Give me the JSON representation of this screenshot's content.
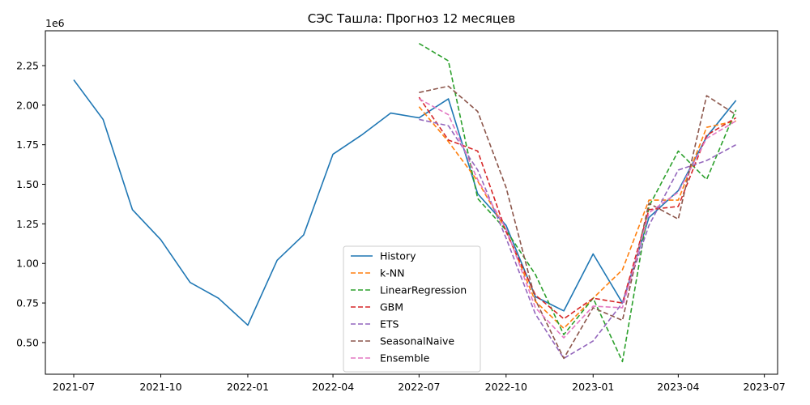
{
  "chart_data": {
    "type": "line",
    "title": "СЭС Ташла: Прогноз 12 месяцев",
    "y_offset_label": "1e6",
    "xlabel": "",
    "ylabel": "",
    "x_ticks": [
      "2021-07",
      "2021-10",
      "2022-01",
      "2022-04",
      "2022-07",
      "2022-10",
      "2023-01",
      "2023-04",
      "2023-07"
    ],
    "y_ticks": [
      "0.50",
      "0.75",
      "1.00",
      "1.25",
      "1.50",
      "1.75",
      "2.00",
      "2.25"
    ],
    "xlim": [
      "2021-06-01",
      "2023-07-15"
    ],
    "ylim": [
      300000,
      2470000
    ],
    "grid": false,
    "legend_position": "lower-center",
    "series": [
      {
        "name": "History",
        "color": "#1f77b4",
        "dash": "solid",
        "x": [
          "2021-07-01",
          "2021-08-01",
          "2021-09-01",
          "2021-10-01",
          "2021-11-01",
          "2021-12-01",
          "2022-01-01",
          "2022-02-01",
          "2022-03-01",
          "2022-04-01",
          "2022-05-01",
          "2022-06-01",
          "2022-07-01",
          "2022-08-01",
          "2022-09-01",
          "2022-10-01",
          "2022-11-01",
          "2022-12-01",
          "2023-01-01",
          "2023-02-01",
          "2023-03-01",
          "2023-04-01",
          "2023-05-01",
          "2023-06-01"
        ],
        "values": [
          2160000,
          1910000,
          1340000,
          1150000,
          880000,
          780000,
          610000,
          1020000,
          1180000,
          1690000,
          1810000,
          1950000,
          1920000,
          2040000,
          1440000,
          1240000,
          790000,
          700000,
          1060000,
          750000,
          1290000,
          1460000,
          1800000,
          2030000
        ]
      },
      {
        "name": "k-NN",
        "color": "#ff7f0e",
        "dash": "dashed",
        "x": [
          "2022-07-01",
          "2022-08-01",
          "2022-09-01",
          "2022-10-01",
          "2022-11-01",
          "2022-12-01",
          "2023-01-01",
          "2023-02-01",
          "2023-03-01",
          "2023-04-01",
          "2023-05-01",
          "2023-06-01"
        ],
        "values": [
          1990000,
          1770000,
          1520000,
          1210000,
          760000,
          590000,
          780000,
          960000,
          1400000,
          1400000,
          1860000,
          1900000
        ]
      },
      {
        "name": "LinearRegression",
        "color": "#2ca02c",
        "dash": "dashed",
        "x": [
          "2022-07-01",
          "2022-08-01",
          "2022-09-01",
          "2022-10-01",
          "2022-11-01",
          "2022-12-01",
          "2023-01-01",
          "2023-02-01",
          "2023-03-01",
          "2023-04-01",
          "2023-05-01",
          "2023-06-01"
        ],
        "values": [
          2390000,
          2280000,
          1410000,
          1210000,
          930000,
          550000,
          780000,
          380000,
          1360000,
          1710000,
          1530000,
          1970000
        ]
      },
      {
        "name": "GBM",
        "color": "#d62728",
        "dash": "dashed",
        "x": [
          "2022-07-01",
          "2022-08-01",
          "2022-09-01",
          "2022-10-01",
          "2022-11-01",
          "2022-12-01",
          "2023-01-01",
          "2023-02-01",
          "2023-03-01",
          "2023-04-01",
          "2023-05-01",
          "2023-06-01"
        ],
        "values": [
          2050000,
          1780000,
          1710000,
          1200000,
          800000,
          650000,
          780000,
          750000,
          1340000,
          1360000,
          1810000,
          1920000
        ]
      },
      {
        "name": "ETS",
        "color": "#9467bd",
        "dash": "dashed",
        "x": [
          "2022-07-01",
          "2022-08-01",
          "2022-09-01",
          "2022-10-01",
          "2022-11-01",
          "2022-12-01",
          "2023-01-01",
          "2023-02-01",
          "2023-03-01",
          "2023-04-01",
          "2023-05-01",
          "2023-06-01"
        ],
        "values": [
          1910000,
          1870000,
          1590000,
          1160000,
          680000,
          400000,
          510000,
          750000,
          1240000,
          1590000,
          1650000,
          1750000
        ]
      },
      {
        "name": "SeasonalNaive",
        "color": "#8c564b",
        "dash": "dashed",
        "x": [
          "2022-07-01",
          "2022-08-01",
          "2022-09-01",
          "2022-10-01",
          "2022-11-01",
          "2022-12-01",
          "2023-01-01",
          "2023-02-01",
          "2023-03-01",
          "2023-04-01",
          "2023-05-01",
          "2023-06-01"
        ],
        "values": [
          2080000,
          2120000,
          1960000,
          1480000,
          770000,
          400000,
          720000,
          640000,
          1380000,
          1280000,
          2060000,
          1940000
        ]
      },
      {
        "name": "Ensemble",
        "color": "#e377c2",
        "dash": "dashed",
        "x": [
          "2022-07-01",
          "2022-08-01",
          "2022-09-01",
          "2022-10-01",
          "2022-11-01",
          "2022-12-01",
          "2023-01-01",
          "2023-02-01",
          "2023-03-01",
          "2023-04-01",
          "2023-05-01",
          "2023-06-01"
        ],
        "values": [
          2040000,
          1940000,
          1530000,
          1220000,
          720000,
          530000,
          730000,
          720000,
          1320000,
          1450000,
          1790000,
          1900000
        ]
      }
    ]
  }
}
